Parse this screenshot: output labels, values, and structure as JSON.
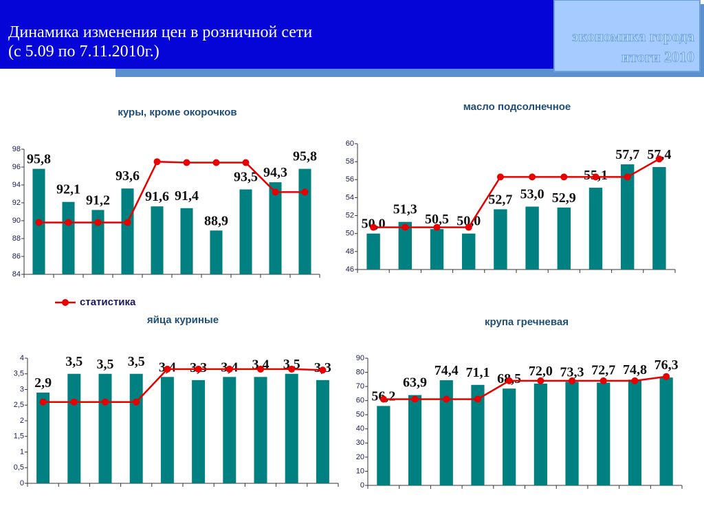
{
  "header": {
    "title": "Динамика изменения цен в розничной сети",
    "subtitle": "(с 5.09 по 7.11.2010г.)",
    "logo_line1": "экономика города",
    "logo_line2": "итоги  2010"
  },
  "chart_data": [
    {
      "type": "bar",
      "title": "куры, кроме окорочков",
      "ylim": [
        84,
        98
      ],
      "yticks": [
        84,
        86,
        88,
        90,
        92,
        94,
        96,
        98
      ],
      "series": [
        {
          "color": "#008080",
          "values": [
            95.8,
            92.1,
            91.2,
            93.6,
            91.6,
            91.4,
            88.9,
            93.5,
            94.3,
            95.8
          ],
          "value_labels": [
            "95,8",
            "92,1",
            "91,2",
            "93,6",
            "91,6",
            "91,4",
            "88,9",
            "93,5",
            "94,3",
            "95,8"
          ]
        },
        {
          "type": "line",
          "name": "статистика",
          "color": "#e60000",
          "values": [
            89.8,
            89.8,
            89.8,
            89.8,
            96.6,
            96.5,
            96.5,
            96.5,
            93.2,
            93.2
          ]
        }
      ]
    },
    {
      "type": "bar",
      "title": "масло подсолнечное",
      "ylim": [
        46,
        60
      ],
      "yticks": [
        46,
        48,
        50,
        52,
        54,
        56,
        58,
        60
      ],
      "series": [
        {
          "color": "#008080",
          "values": [
            50.0,
            51.3,
            50.5,
            50.0,
            52.7,
            53.0,
            52.9,
            55.1,
            57.7,
            57.4
          ],
          "value_labels": [
            "50,0",
            "51,3",
            "50,5",
            "50,0",
            "52,7",
            "53,0",
            "52,9",
            "55,1",
            "57,7",
            "57,4"
          ]
        },
        {
          "type": "line",
          "color": "#e60000",
          "values": [
            50.7,
            50.7,
            50.7,
            50.7,
            56.3,
            56.3,
            56.3,
            56.3,
            56.3,
            58.3
          ]
        }
      ]
    },
    {
      "type": "bar",
      "title": "яйца куриные",
      "ylim": [
        0,
        4
      ],
      "yticks": [
        0,
        {
          "value": 0.5,
          "label": "0,5"
        },
        1,
        {
          "value": 1.5,
          "label": "1,5"
        },
        2,
        {
          "value": 2.5,
          "label": "2,5"
        },
        3,
        {
          "value": 3.5,
          "label": "3,5"
        },
        4
      ],
      "series": [
        {
          "color": "#008080",
          "values": [
            2.9,
            3.5,
            3.5,
            3.5,
            3.4,
            3.3,
            3.4,
            3.4,
            3.5,
            3.3
          ],
          "value_labels": [
            "2,9",
            "3,5",
            "3,5",
            "3,5",
            "3,4",
            "3,3",
            "3,4",
            "3,4",
            "3,5",
            "3,3"
          ]
        },
        {
          "type": "line",
          "color": "#e60000",
          "values": [
            2.6,
            2.6,
            2.6,
            2.6,
            3.65,
            3.65,
            3.65,
            3.65,
            3.65,
            3.62
          ]
        }
      ]
    },
    {
      "type": "bar",
      "title": "крупа гречневая",
      "ylim": [
        0,
        90
      ],
      "yticks": [
        0,
        10,
        20,
        30,
        40,
        50,
        60,
        70,
        80,
        90
      ],
      "series": [
        {
          "color": "#008080",
          "values": [
            56.2,
            63.9,
            74.4,
            71.1,
            68.5,
            72.0,
            73.3,
            72.7,
            74.8,
            76.3
          ],
          "value_labels": [
            "56,2",
            "63,9",
            "74,4",
            "71,1",
            "68,5",
            "72,0",
            "73,3",
            "72,7",
            "74,8",
            "76,3"
          ]
        },
        {
          "type": "line",
          "color": "#e60000",
          "values": [
            61,
            61,
            61,
            61,
            74,
            74,
            74,
            74,
            74,
            77
          ]
        }
      ]
    }
  ]
}
